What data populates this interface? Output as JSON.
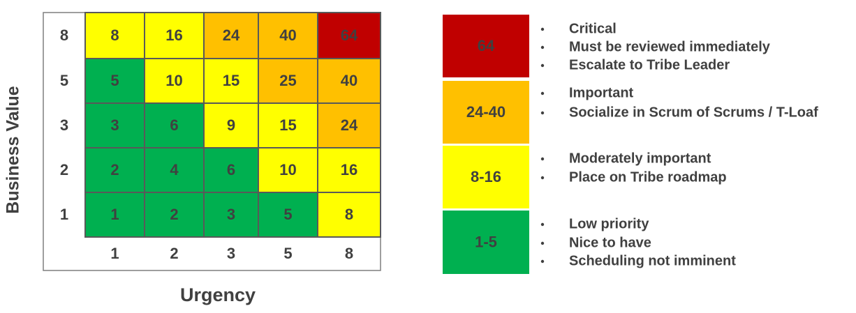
{
  "matrix": {
    "y_axis_title": "Business Value",
    "x_axis_title": "Urgency",
    "row_labels": [
      8,
      5,
      3,
      2,
      1
    ],
    "col_labels": [
      1,
      2,
      3,
      5,
      8
    ],
    "cells": [
      [
        8,
        16,
        24,
        40,
        64
      ],
      [
        5,
        10,
        15,
        25,
        40
      ],
      [
        3,
        6,
        9,
        15,
        24
      ],
      [
        2,
        4,
        6,
        10,
        16
      ],
      [
        1,
        2,
        3,
        5,
        8
      ]
    ],
    "cell_colors": [
      [
        "#ffff00",
        "#ffff00",
        "#ffc000",
        "#ffc000",
        "#c00000"
      ],
      [
        "#00b050",
        "#ffff00",
        "#ffff00",
        "#ffc000",
        "#ffc000"
      ],
      [
        "#00b050",
        "#00b050",
        "#ffff00",
        "#ffff00",
        "#ffc000"
      ],
      [
        "#00b050",
        "#00b050",
        "#00b050",
        "#ffff00",
        "#ffff00"
      ],
      [
        "#00b050",
        "#00b050",
        "#00b050",
        "#00b050",
        "#ffff00"
      ]
    ]
  },
  "legend": [
    {
      "label": "64",
      "color": "#c00000",
      "bullets": [
        "Critical",
        "Must be reviewed immediately",
        "Escalate to Tribe Leader"
      ]
    },
    {
      "label": "24-40",
      "color": "#ffc000",
      "bullets": [
        "Important",
        "Socialize in Scrum of Scrums / T-Loaf"
      ]
    },
    {
      "label": "8-16",
      "color": "#ffff00",
      "bullets": [
        "Moderately important",
        "Place on Tribe roadmap"
      ]
    },
    {
      "label": "1-5",
      "color": "#00b050",
      "bullets": [
        "Low priority",
        "Nice to have",
        "Scheduling not imminent"
      ]
    }
  ]
}
